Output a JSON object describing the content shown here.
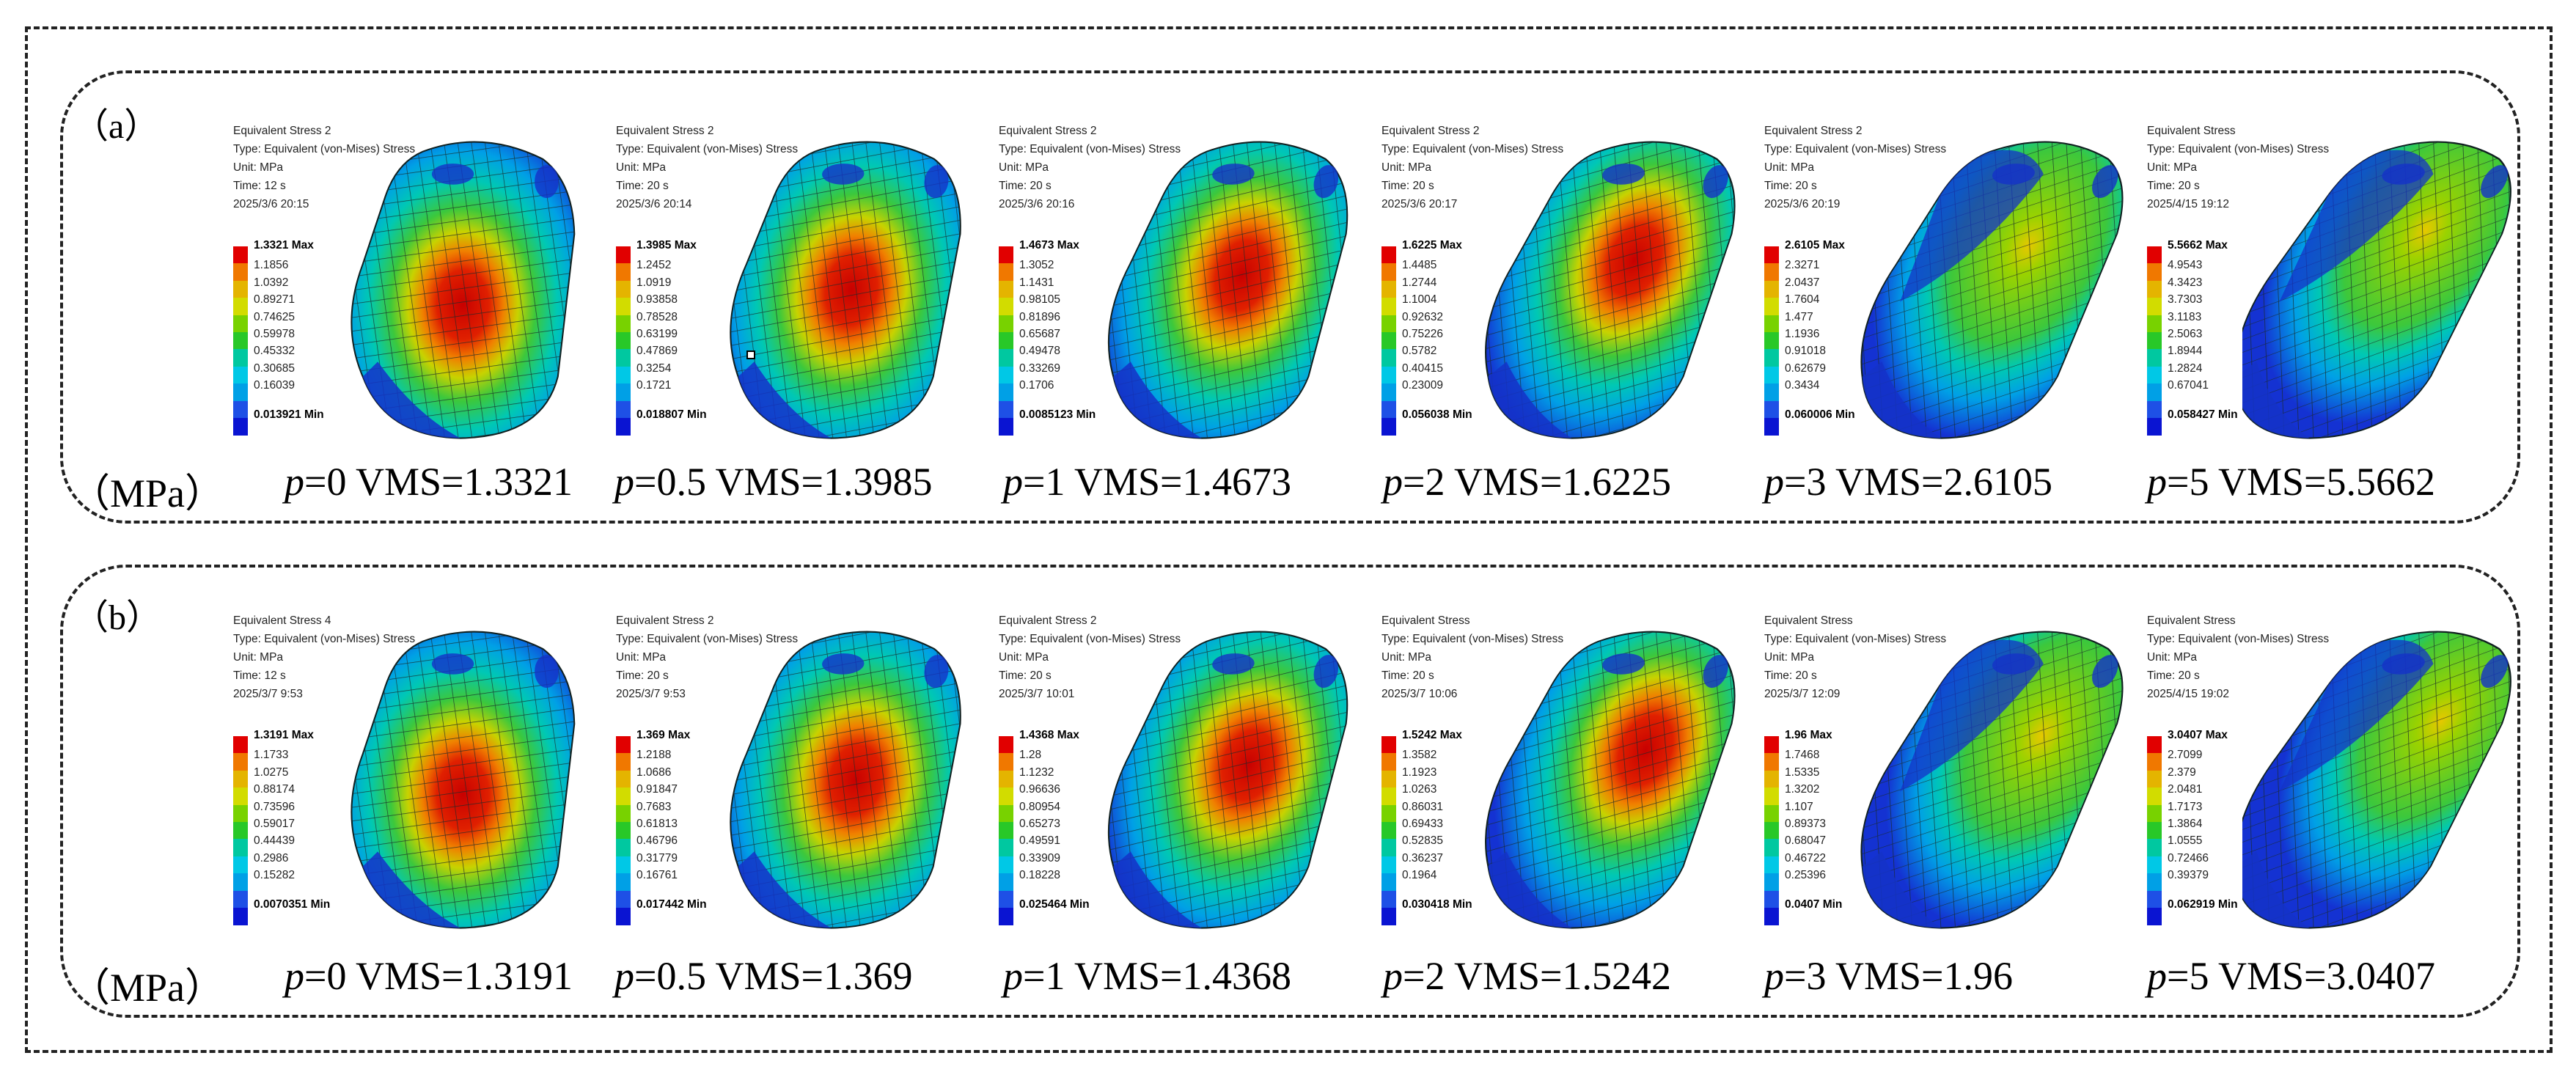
{
  "figure": {
    "unit": "（MPa）",
    "legend_colors": [
      "#e10000",
      "#f07800",
      "#e4b400",
      "#d2dc00",
      "#78d200",
      "#28c828",
      "#00c8a0",
      "#00c8e6",
      "#00a0e6",
      "#1e50e6",
      "#0a14d2"
    ],
    "rows": [
      {
        "label": "（a）",
        "panels": [
          {
            "title": "Equivalent Stress 2",
            "type": "Type: Equivalent (von-Mises) Stress",
            "unit": "Unit: MPa",
            "time": "Time: 12 s",
            "date": "2025/3/6 20:15",
            "max": "1.3321 Max",
            "levels": [
              "1.1856",
              "1.0392",
              "0.89271",
              "0.74625",
              "0.59978",
              "0.45332",
              "0.30685",
              "0.16039"
            ],
            "min": "0.013921 Min",
            "p_symbol": "p",
            "p_value": "=0",
            "vms_label": "VMS=1.3321",
            "p": 0,
            "vms": 1.3321
          },
          {
            "title": "Equivalent Stress 2",
            "type": "Type: Equivalent (von-Mises) Stress",
            "unit": "Unit: MPa",
            "time": "Time: 20 s",
            "date": "2025/3/6 20:14",
            "max": "1.3985 Max",
            "levels": [
              "1.2452",
              "1.0919",
              "0.93858",
              "0.78528",
              "0.63199",
              "0.47869",
              "0.3254",
              "0.1721"
            ],
            "min": "0.018807 Min",
            "p_symbol": "p",
            "p_value": "=0.5",
            "vms_label": "VMS=1.3985",
            "p": 0.5,
            "vms": 1.3985
          },
          {
            "title": "Equivalent Stress 2",
            "type": "Type: Equivalent (von-Mises) Stress",
            "unit": "Unit: MPa",
            "time": "Time: 20 s",
            "date": "2025/3/6 20:16",
            "max": "1.4673 Max",
            "levels": [
              "1.3052",
              "1.1431",
              "0.98105",
              "0.81896",
              "0.65687",
              "0.49478",
              "0.33269",
              "0.1706"
            ],
            "min": "0.0085123 Min",
            "p_symbol": "p",
            "p_value": "=1",
            "vms_label": "VMS=1.4673",
            "p": 1,
            "vms": 1.4673
          },
          {
            "title": "Equivalent Stress 2",
            "type": "Type: Equivalent (von-Mises) Stress",
            "unit": "Unit: MPa",
            "time": "Time: 20 s",
            "date": "2025/3/6 20:17",
            "max": "1.6225 Max",
            "levels": [
              "1.4485",
              "1.2744",
              "1.1004",
              "0.92632",
              "0.75226",
              "0.5782",
              "0.40415",
              "0.23009"
            ],
            "min": "0.056038 Min",
            "p_symbol": "p",
            "p_value": "=2",
            "vms_label": "VMS=1.6225",
            "p": 2,
            "vms": 1.6225
          },
          {
            "title": "Equivalent Stress 2",
            "type": "Type: Equivalent (von-Mises) Stress",
            "unit": "Unit: MPa",
            "time": "Time: 20 s",
            "date": "2025/3/6 20:19",
            "max": "2.6105 Max",
            "levels": [
              "2.3271",
              "2.0437",
              "1.7604",
              "1.477",
              "1.1936",
              "0.91018",
              "0.62679",
              "0.3434"
            ],
            "min": "0.060006 Min",
            "p_symbol": "p",
            "p_value": "=3",
            "vms_label": "VMS=2.6105",
            "p": 3,
            "vms": 2.6105
          },
          {
            "title": "Equivalent Stress",
            "type": "Type: Equivalent (von-Mises) Stress",
            "unit": "Unit: MPa",
            "time": "Time: 20 s",
            "date": "2025/4/15 19:12",
            "max": "5.5662 Max",
            "levels": [
              "4.9543",
              "4.3423",
              "3.7303",
              "3.1183",
              "2.5063",
              "1.8944",
              "1.2824",
              "0.67041"
            ],
            "min": "0.058427 Min",
            "p_symbol": "p",
            "p_value": "=5",
            "vms_label": "VMS=5.5662",
            "p": 5,
            "vms": 5.5662
          }
        ]
      },
      {
        "label": "（b）",
        "panels": [
          {
            "title": "Equivalent Stress 4",
            "type": "Type: Equivalent (von-Mises) Stress",
            "unit": "Unit: MPa",
            "time": "Time: 12 s",
            "date": "2025/3/7 9:53",
            "max": "1.3191 Max",
            "levels": [
              "1.1733",
              "1.0275",
              "0.88174",
              "0.73596",
              "0.59017",
              "0.44439",
              "0.2986",
              "0.15282"
            ],
            "min": "0.0070351 Min",
            "p_symbol": "p",
            "p_value": "=0",
            "vms_label": "VMS=1.3191",
            "p": 0,
            "vms": 1.3191
          },
          {
            "title": "Equivalent Stress 2",
            "type": "Type: Equivalent (von-Mises) Stress",
            "unit": "Unit: MPa",
            "time": "Time: 20 s",
            "date": "2025/3/7 9:53",
            "max": "1.369 Max",
            "levels": [
              "1.2188",
              "1.0686",
              "0.91847",
              "0.7683",
              "0.61813",
              "0.46796",
              "0.31779",
              "0.16761"
            ],
            "min": "0.017442 Min",
            "p_symbol": "p",
            "p_value": "=0.5",
            "vms_label": "VMS=1.369",
            "p": 0.5,
            "vms": 1.369
          },
          {
            "title": "Equivalent Stress 2",
            "type": "Type: Equivalent (von-Mises) Stress",
            "unit": "Unit: MPa",
            "time": "Time: 20 s",
            "date": "2025/3/7 10:01",
            "max": "1.4368 Max",
            "levels": [
              "1.28",
              "1.1232",
              "0.96636",
              "0.80954",
              "0.65273",
              "0.49591",
              "0.33909",
              "0.18228"
            ],
            "min": "0.025464 Min",
            "p_symbol": "p",
            "p_value": "=1",
            "vms_label": "VMS=1.4368",
            "p": 1,
            "vms": 1.4368
          },
          {
            "title": "Equivalent Stress",
            "type": "Type: Equivalent (von-Mises) Stress",
            "unit": "Unit: MPa",
            "time": "Time: 20 s",
            "date": "2025/3/7 10:06",
            "max": "1.5242 Max",
            "levels": [
              "1.3582",
              "1.1923",
              "1.0263",
              "0.86031",
              "0.69433",
              "0.52835",
              "0.36237",
              "0.1964"
            ],
            "min": "0.030418 Min",
            "p_symbol": "p",
            "p_value": "=2",
            "vms_label": "VMS=1.5242",
            "p": 2,
            "vms": 1.5242
          },
          {
            "title": "Equivalent Stress",
            "type": "Type: Equivalent (von-Mises) Stress",
            "unit": "Unit: MPa",
            "time": "Time: 20 s",
            "date": "2025/3/7 12:09",
            "max": "1.96 Max",
            "levels": [
              "1.7468",
              "1.5335",
              "1.3202",
              "1.107",
              "0.89373",
              "0.68047",
              "0.46722",
              "0.25396"
            ],
            "min": "0.0407 Min",
            "p_symbol": "p",
            "p_value": "=3",
            "vms_label": "VMS=1.96",
            "p": 3,
            "vms": 1.96
          },
          {
            "title": "Equivalent Stress",
            "type": "Type: Equivalent (von-Mises) Stress",
            "unit": "Unit: MPa",
            "time": "Time: 20 s",
            "date": "2025/4/15 19:02",
            "max": "3.0407 Max",
            "levels": [
              "2.7099",
              "2.379",
              "2.0481",
              "1.7173",
              "1.3864",
              "1.0555",
              "0.72466",
              "0.39379"
            ],
            "min": "0.062919 Min",
            "p_symbol": "p",
            "p_value": "=5",
            "vms_label": "VMS=3.0407",
            "p": 5,
            "vms": 3.0407
          }
        ]
      }
    ]
  }
}
